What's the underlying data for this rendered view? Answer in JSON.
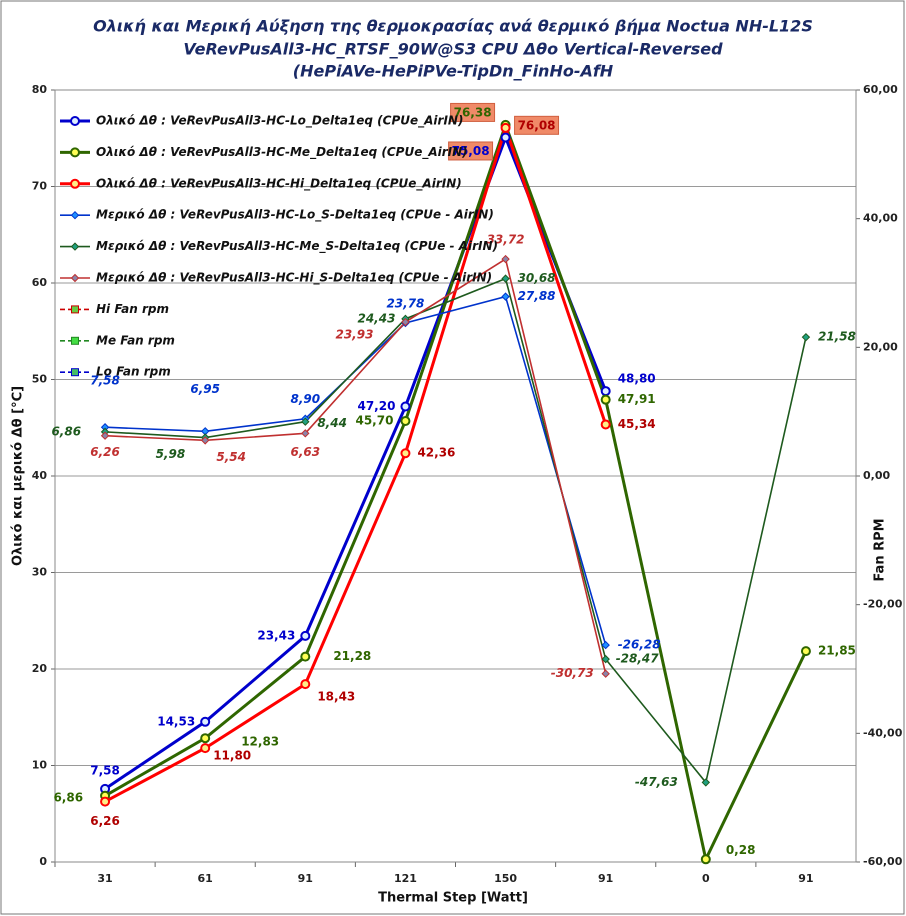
{
  "chart_data": {
    "type": "line",
    "title": [
      "Ολική και Μερική Αύξηση της θερμοκρασίας ανά θερμικό βήμα   Noctua NH-L12S",
      "VeRevPusAll3-HC_RTSF_90W@S3  CPU Δθο Vertical-Reversed",
      "(HePiAVe-HePiPVe-TipDn_FinHo-AfH"
    ],
    "x_label": "Thermal Step [Watt]",
    "y_label": "Ολικό  και  μερικό  Δθ  [°C]",
    "y2_label": "Fan RPM",
    "categories": [
      "31",
      "61",
      "91",
      "121",
      "150",
      "91",
      "0",
      "91"
    ],
    "ylim": [
      0,
      80
    ],
    "yticks": [
      0,
      10,
      20,
      30,
      40,
      50,
      60,
      70,
      80
    ],
    "y2lim": [
      -60,
      60
    ],
    "y2ticks": [
      {
        "value": -60,
        "label": "-60,00"
      },
      {
        "value": -40,
        "label": "-40,00"
      },
      {
        "value": -20,
        "label": "-20,00"
      },
      {
        "value": 0,
        "label": "0,00"
      },
      {
        "value": 20,
        "label": "20,00"
      },
      {
        "value": 40,
        "label": "40,00"
      },
      {
        "value": 60,
        "label": "60,00"
      }
    ],
    "grid": true,
    "legend": "upper left",
    "series": [
      {
        "name": "Ολικό Δθ : VeRevPusAll3-HC-Lo_Delta1eq (CPUe_AirIN)",
        "color": "#0000cc",
        "marker": "circle",
        "marker_color": "#ddeeff",
        "axis": "y",
        "values": [
          7.58,
          14.53,
          23.43,
          47.2,
          75.08,
          48.8,
          null,
          null
        ],
        "value_labels": [
          "7,58",
          "14,53",
          "23,43",
          "47,20",
          "75,08",
          "48,80",
          null,
          null
        ]
      },
      {
        "name": "Ολικό Δθ : VeRevPusAll3-HC-Me_Delta1eq (CPUe_AirIN)",
        "color": "#2f6600",
        "marker": "circle",
        "marker_color": "#ffff55",
        "axis": "y",
        "values": [
          6.86,
          12.83,
          21.28,
          45.7,
          76.38,
          47.91,
          0.28,
          21.85
        ],
        "value_labels": [
          "6,86",
          "12,83",
          "21,28",
          "45,70",
          "76,38",
          "47,91",
          "0,28",
          "21,85"
        ]
      },
      {
        "name": "Ολικό Δθ : VeRevPusAll3-HC-Hi_Delta1eq (CPUe_AirIN)",
        "color": "#ff0000",
        "marker": "circle",
        "marker_color": "#ffee88",
        "axis": "y",
        "values": [
          6.26,
          11.8,
          18.43,
          42.36,
          76.08,
          45.34,
          null,
          null
        ],
        "value_labels": [
          "6,26",
          "11,80",
          "18,43",
          "42,36",
          "76,08",
          "45,34",
          null,
          null
        ]
      },
      {
        "name": "Μερικό Δθ : VeRevPusAll3-HC-Lo_S-Delta1eq (CPUe - AirIN)",
        "color": "#0033cc",
        "marker": "diamond",
        "marker_color": "#1e90ff",
        "axis": "y2",
        "values": [
          7.58,
          6.95,
          8.9,
          23.78,
          27.88,
          -26.28,
          null,
          null
        ],
        "value_labels": [
          "7,58",
          "6,95",
          "8,90",
          "23,78",
          "27,88",
          "-26,28",
          null,
          null
        ]
      },
      {
        "name": "Μερικό Δθ : VeRevPusAll3-HC-Me_S-Delta1eq (CPUe - AirIN)",
        "color": "#1e5a1e",
        "marker": "diamond",
        "marker_color": "#20a080",
        "axis": "y2",
        "values": [
          6.86,
          5.98,
          8.44,
          24.43,
          30.68,
          -28.47,
          -47.63,
          21.58
        ],
        "value_labels": [
          "6,86",
          "5,98",
          "8,44",
          "24,43",
          "30,68",
          "-28,47",
          "-47,63",
          "21,58"
        ]
      },
      {
        "name": "Μερικό Δθ : VeRevPusAll3-HC-Hi_S-Delta1eq (CPUe - AirIN)",
        "color": "#c03030",
        "marker": "diamond",
        "marker_color": "#8a84a8",
        "axis": "y2",
        "values": [
          6.26,
          5.54,
          6.63,
          23.93,
          33.72,
          -30.73,
          null,
          null
        ],
        "value_labels": [
          "6,26",
          "5,54",
          "6,63",
          "23,93",
          "33,72",
          "-30,73",
          null,
          null
        ]
      },
      {
        "name": "Hi Fan rpm",
        "color": "#cc0000",
        "marker": "square",
        "marker_color": "#66cc44",
        "axis": "y2",
        "line_style": "dashed",
        "values": [
          null,
          null,
          null,
          null,
          null,
          null,
          null,
          null
        ]
      },
      {
        "name": "Me Fan rpm",
        "color": "#228822",
        "marker": "square",
        "marker_color": "#44dd44",
        "axis": "y2",
        "line_style": "dashed",
        "values": [
          null,
          null,
          null,
          null,
          null,
          null,
          null,
          null
        ]
      },
      {
        "name": "Lo Fan rpm",
        "color": "#0000cc",
        "marker": "square",
        "marker_color": "#44bb66",
        "axis": "y2",
        "line_style": "dashed",
        "values": [
          null,
          null,
          null,
          null,
          null,
          null,
          null,
          null
        ]
      }
    ]
  }
}
